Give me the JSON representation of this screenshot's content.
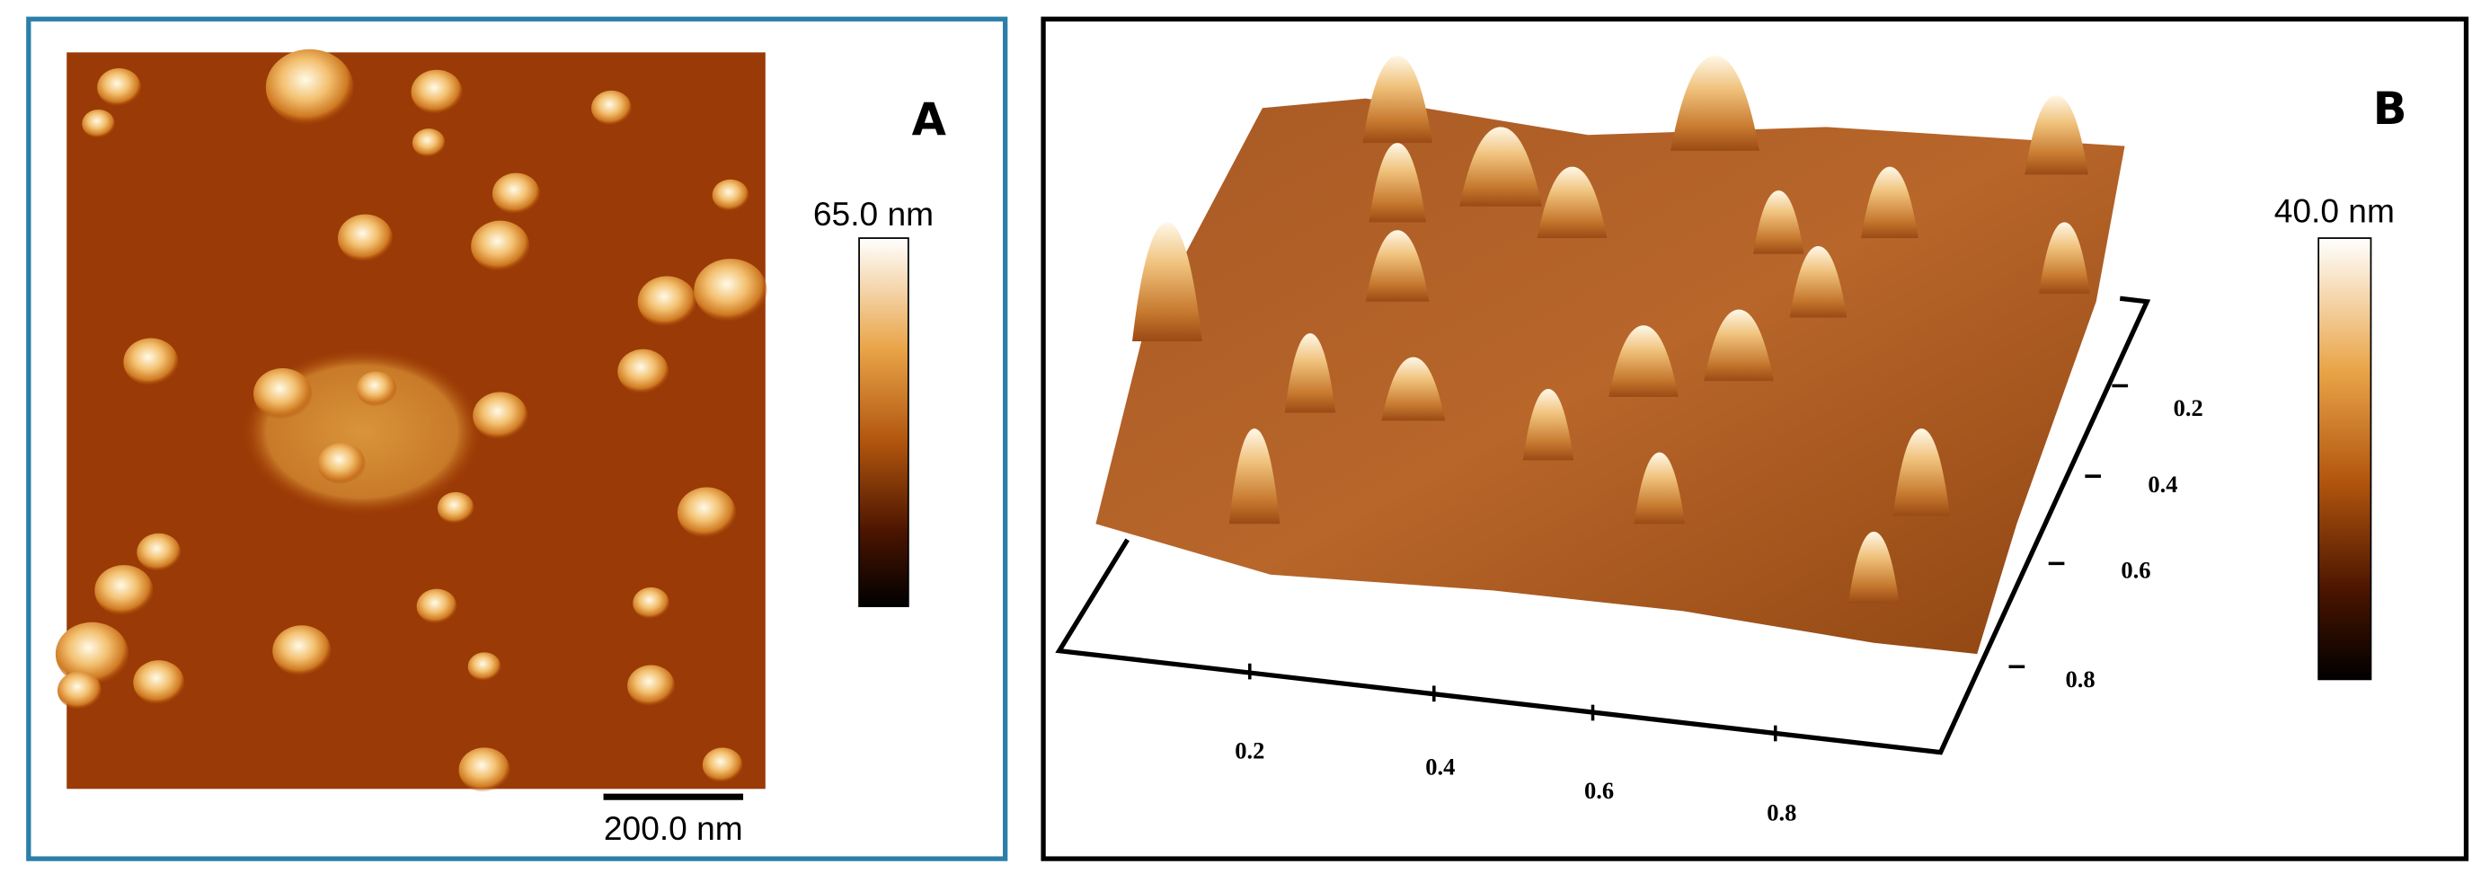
{
  "panel_a": {
    "label": "A",
    "colorbar_max": "65.0 nm",
    "scale_bar": "200.0 nm"
  },
  "panel_b": {
    "label": "B",
    "colorbar_max": "40.0 nm",
    "x_ticks": [
      "0.2",
      "0.4",
      "0.6",
      "0.8"
    ],
    "y_ticks": [
      "0.2",
      "0.4",
      "0.6",
      "0.8"
    ]
  }
}
